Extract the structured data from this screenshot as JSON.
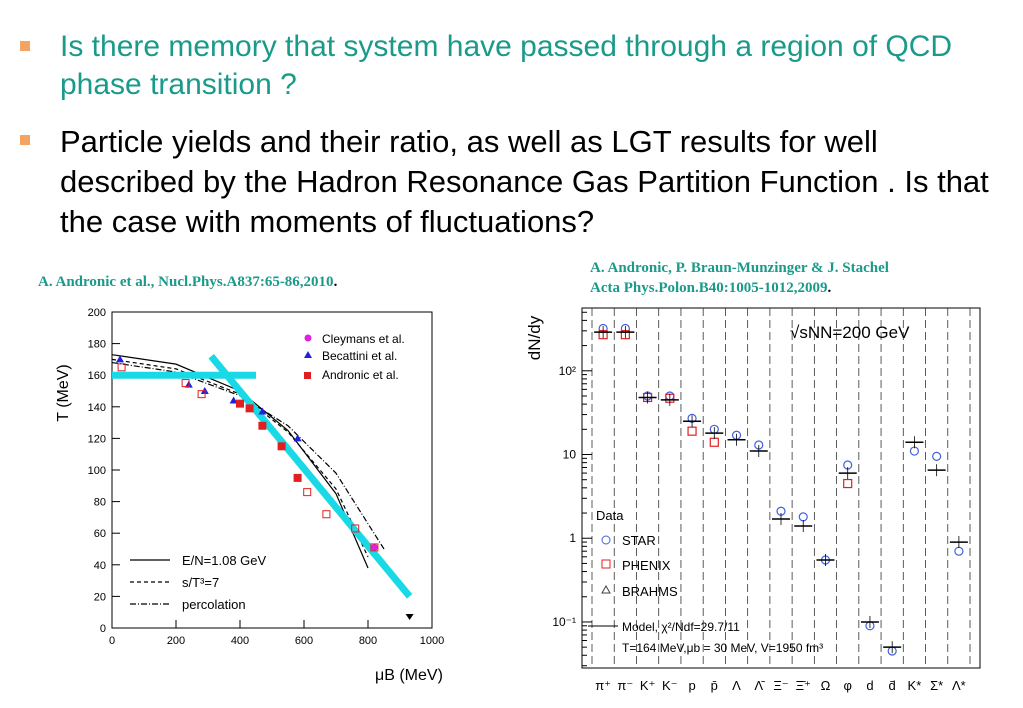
{
  "bullets": [
    "Is there memory that system have passed through a region of QCD phase transition ?",
    "Particle yields and their ratio, as well as LGT results for well described by the Hadron Resonance Gas Partition Function . Is that the case with moments of fluctuations?"
  ],
  "citations": {
    "left": "A. Andronic et al., Nucl.Phys.A837:65-86,2010",
    "right_line1": "A. Andronic, P. Braun-Munzinger & J. Stachel",
    "right_line2": "Acta Phys.Polon.B40:1005-1012,2009",
    "dot": "."
  },
  "left_plot": {
    "ylabel": "T (MeV)",
    "xlabel": "μB (MeV)",
    "legend": [
      "Cleymans et al.",
      "Becattini et al.",
      "Andronic et al."
    ],
    "curve_legend": [
      "E/N=1.08 GeV",
      "s/T³=7",
      "percolation"
    ],
    "colors": {
      "cleymans": "#e020e0",
      "becattini": "#2020e0",
      "andronic": "#e02020",
      "highlight": "#19d9e6"
    }
  },
  "right_plot": {
    "ylabel": "dN/dy",
    "energy_label": "√sNN=200 GeV",
    "data_title": "Data",
    "legend": [
      "STAR",
      "PHENIX",
      "BRAHMS"
    ],
    "model_line1": "Model, χ²/Ndf=29.7/11",
    "model_line2": "T=164 MeV,μb = 30 MeV, V=1950 fm³",
    "colors": {
      "star": "#4060e0",
      "phenix": "#e02020",
      "brahms": "#404040"
    }
  },
  "chart_data": [
    {
      "type": "scatter",
      "xlabel": "μB (MeV)",
      "ylabel": "T (MeV)",
      "xlim": [
        0,
        1000
      ],
      "ylim": [
        0,
        200
      ],
      "xticks": [
        0,
        200,
        400,
        600,
        800,
        1000
      ],
      "yticks": [
        0,
        20,
        40,
        60,
        80,
        100,
        120,
        140,
        160,
        180,
        200
      ],
      "series": [
        {
          "name": "Cleymans et al.",
          "marker": "circle",
          "x": [
            820
          ],
          "y": [
            51
          ]
        },
        {
          "name": "Becattini et al.",
          "marker": "triangle",
          "x": [
            25,
            240,
            290,
            380,
            470,
            580
          ],
          "y": [
            170,
            154,
            150,
            144,
            137,
            120
          ]
        },
        {
          "name": "Andronic et al.",
          "marker": "square",
          "x": [
            30,
            230,
            280,
            400,
            430,
            470,
            530,
            580,
            610,
            670,
            760,
            820
          ],
          "y": [
            165,
            155,
            148,
            142,
            139,
            128,
            115,
            95,
            86,
            72,
            63,
            51
          ]
        },
        {
          "name": "E/N=1.08 GeV",
          "style": "solid",
          "x": [
            0,
            200,
            400,
            550,
            700,
            800
          ],
          "y": [
            173,
            167,
            150,
            125,
            85,
            38
          ]
        },
        {
          "name": "s/T³=7",
          "style": "dashed",
          "x": [
            0,
            200,
            400,
            550,
            700,
            800
          ],
          "y": [
            170,
            164,
            148,
            124,
            88,
            45
          ]
        },
        {
          "name": "percolation",
          "style": "dashdot",
          "x": [
            0,
            200,
            400,
            550,
            700,
            850
          ],
          "y": [
            168,
            162,
            147,
            128,
            98,
            50
          ]
        }
      ]
    },
    {
      "type": "scatter",
      "ylabel": "dN/dy",
      "yscale": "log",
      "categories": [
        "π⁺",
        "π⁻",
        "K⁺",
        "K⁻",
        "p",
        "p̄",
        "Λ",
        "Λ̄",
        "Ξ⁻",
        "Ξ̄⁺",
        "Ω",
        "φ",
        "d",
        "d̄",
        "K*",
        "Σ*",
        "Λ*"
      ],
      "yticks": [
        "10⁻¹",
        "1",
        "10",
        "10²"
      ],
      "series": [
        {
          "name": "STAR",
          "marker": "circle",
          "values": [
            320,
            320,
            50,
            50,
            27,
            20,
            17,
            13,
            2.1,
            1.8,
            0.55,
            7.5,
            0.09,
            0.045,
            11,
            9.5,
            0.7
          ]
        },
        {
          "name": "PHENIX",
          "marker": "square",
          "values": [
            270,
            270,
            48,
            47,
            19,
            14,
            null,
            null,
            null,
            null,
            null,
            4.5,
            null,
            null,
            null,
            null,
            null
          ]
        },
        {
          "name": "Model",
          "marker": "line",
          "values": [
            290,
            290,
            48,
            45,
            25,
            18,
            15,
            11,
            1.7,
            1.4,
            0.55,
            6,
            0.1,
            0.05,
            14,
            6.5,
            0.9
          ]
        }
      ]
    }
  ]
}
